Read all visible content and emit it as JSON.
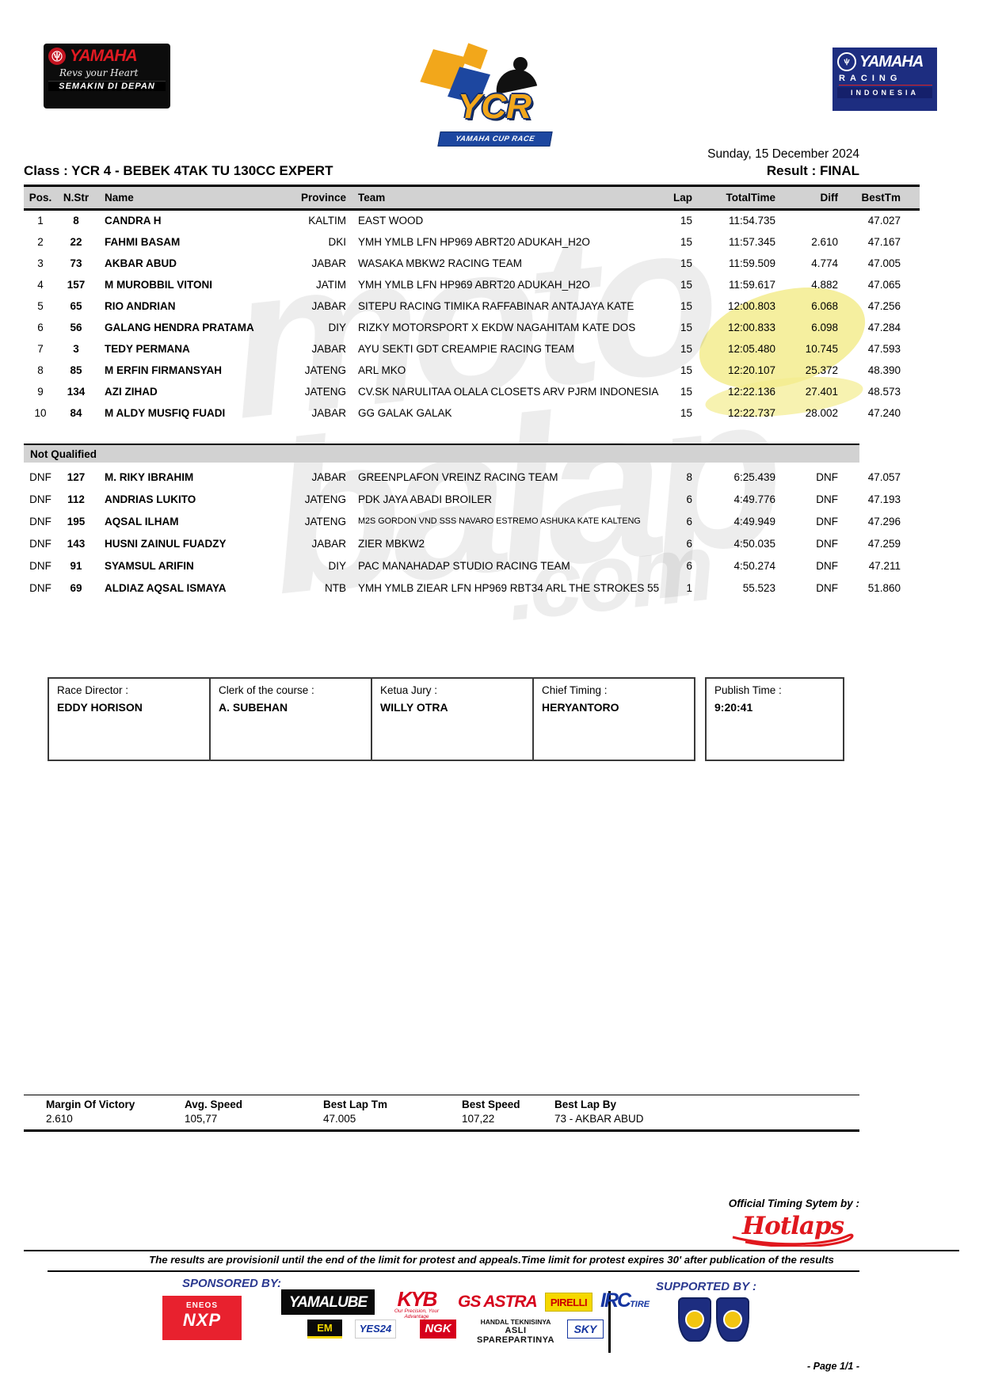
{
  "page": {
    "date": "Sunday, 15 December 2024",
    "class_label": "Class : YCR 4 - BEBEK 4TAK TU 130CC EXPERT",
    "result_label": "Result : FINAL",
    "page_label": "- Page 1/1 -"
  },
  "logos": {
    "yamaha_left": {
      "brand": "YAMAHA",
      "tagline": "Revs your Heart",
      "strip": "SEMAKIN DI DEPAN"
    },
    "ycr": {
      "title": "YCR",
      "banner": "YAMAHA CUP RACE"
    },
    "yamaha_right": {
      "brand": "YAMAHA",
      "line2": "RACING",
      "line3": "INDONESIA"
    }
  },
  "watermark": {
    "line1": "moto",
    "line2": "balap",
    "suffix": ".com"
  },
  "results": {
    "columns": [
      "Pos.",
      "N.Str",
      "Name",
      "Province",
      "Team",
      "Lap",
      "TotalTime",
      "Diff",
      "BestTm"
    ],
    "rows": [
      {
        "pos": "1",
        "nstr": "8",
        "name": "CANDRA H",
        "province": "KALTIM",
        "team": "EAST WOOD",
        "lap": "15",
        "total": "11:54.735",
        "diff": "",
        "best": "47.027"
      },
      {
        "pos": "2",
        "nstr": "22",
        "name": "FAHMI BASAM",
        "province": "DKI",
        "team": "YMH YMLB LFN HP969 ABRT20 ADUKAH_H2O",
        "lap": "15",
        "total": "11:57.345",
        "diff": "2.610",
        "best": "47.167"
      },
      {
        "pos": "3",
        "nstr": "73",
        "name": "AKBAR ABUD",
        "province": "JABAR",
        "team": "WASAKA MBKW2 RACING TEAM",
        "lap": "15",
        "total": "11:59.509",
        "diff": "4.774",
        "best": "47.005"
      },
      {
        "pos": "4",
        "nstr": "157",
        "name": "M MUROBBIL VITONI",
        "province": "JATIM",
        "team": "YMH YMLB LFN HP969 ABRT20 ADUKAH_H2O",
        "lap": "15",
        "total": "11:59.617",
        "diff": "4.882",
        "best": "47.065"
      },
      {
        "pos": "5",
        "nstr": "65",
        "name": "RIO ANDRIAN",
        "province": "JABAR",
        "team": "SITEPU RACING TIMIKA RAFFABINAR ANTAJAYA KATE",
        "lap": "15",
        "total": "12:00.803",
        "diff": "6.068",
        "best": "47.256"
      },
      {
        "pos": "6",
        "nstr": "56",
        "name": "GALANG HENDRA PRATAMA",
        "province": "DIY",
        "team": "RIZKY MOTORSPORT X EKDW NAGAHITAM KATE DOS",
        "lap": "15",
        "total": "12:00.833",
        "diff": "6.098",
        "best": "47.284"
      },
      {
        "pos": "7",
        "nstr": "3",
        "name": "TEDY PERMANA",
        "province": "JABAR",
        "team": "AYU SEKTI GDT CREAMPIE RACING TEAM",
        "lap": "15",
        "total": "12:05.480",
        "diff": "10.745",
        "best": "47.593"
      },
      {
        "pos": "8",
        "nstr": "85",
        "name": "M ERFIN FIRMANSYAH",
        "province": "JATENG",
        "team": "ARL MKO",
        "lap": "15",
        "total": "12:20.107",
        "diff": "25.372",
        "best": "48.390"
      },
      {
        "pos": "9",
        "nstr": "134",
        "name": "AZI ZIHAD",
        "province": "JATENG",
        "team": "CV.SK NARULITAA OLALA CLOSETS ARV PJRM INDONESIA",
        "lap": "15",
        "total": "12:22.136",
        "diff": "27.401",
        "best": "48.573"
      },
      {
        "pos": "10",
        "nstr": "84",
        "name": "M ALDY MUSFIQ FUADI",
        "province": "JABAR",
        "team": "GG GALAK GALAK",
        "lap": "15",
        "total": "12:22.737",
        "diff": "28.002",
        "best": "47.240"
      }
    ]
  },
  "not_qualified": {
    "label": "Not Qualified",
    "rows": [
      {
        "pos": "DNF",
        "nstr": "127",
        "name": "M. RIKY IBRAHIM",
        "province": "JABAR",
        "team": "GREENPLAFON VREINZ RACING TEAM",
        "lap": "8",
        "total": "6:25.439",
        "diff": "DNF",
        "best": "47.057"
      },
      {
        "pos": "DNF",
        "nstr": "112",
        "name": "ANDRIAS LUKITO",
        "province": "JATENG",
        "team": "PDK JAYA ABADI BROILER",
        "lap": "6",
        "total": "4:49.776",
        "diff": "DNF",
        "best": "47.193"
      },
      {
        "pos": "DNF",
        "nstr": "195",
        "name": "AQSAL ILHAM",
        "province": "JATENG",
        "team": "M2S GORDON VND SSS NAVARO ESTREMO ASHUKA KATE KALTENG",
        "lap": "6",
        "total": "4:49.949",
        "diff": "DNF",
        "best": "47.296"
      },
      {
        "pos": "DNF",
        "nstr": "143",
        "name": "HUSNI ZAINUL FUADZY",
        "province": "JABAR",
        "team": "ZIER MBKW2",
        "lap": "6",
        "total": "4:50.035",
        "diff": "DNF",
        "best": "47.259"
      },
      {
        "pos": "DNF",
        "nstr": "91",
        "name": "SYAMSUL ARIFIN",
        "province": "DIY",
        "team": "PAC MANAHADAP STUDIO RACING TEAM",
        "lap": "6",
        "total": "4:50.274",
        "diff": "DNF",
        "best": "47.211"
      },
      {
        "pos": "DNF",
        "nstr": "69",
        "name": "ALDIAZ AQSAL ISMAYA",
        "province": "NTB",
        "team": "YMH YMLB ZIEAR LFN HP969 RBT34 ARL THE STROKES 55",
        "lap": "1",
        "total": "55.523",
        "diff": "DNF",
        "best": "51.860"
      }
    ]
  },
  "officials": [
    {
      "label": "Race Director :",
      "name": "EDDY HORISON"
    },
    {
      "label": "Clerk of the course :",
      "name": "A. SUBEHAN"
    },
    {
      "label": "Ketua Jury :",
      "name": "WILLY OTRA"
    },
    {
      "label": "Chief Timing :",
      "name": "HERYANTORO"
    },
    {
      "label": "Publish Time :",
      "name": "9:20:41"
    }
  ],
  "stats": [
    {
      "label": "Margin Of Victory",
      "value": "2.610"
    },
    {
      "label": "Avg. Speed",
      "value": "105,77"
    },
    {
      "label": "Best Lap Tm",
      "value": "47.005"
    },
    {
      "label": "Best Speed",
      "value": "107,22"
    },
    {
      "label": "Best Lap By",
      "value": "73 - AKBAR ABUD"
    }
  ],
  "footer": {
    "timing_label": "Official Timing Sytem by :",
    "timing_brand": "Hotlaps",
    "note": "The results are provisionil until the end of the limit for protest and appeals.Time limit for protest expires 30' after publication of the results",
    "sponsored_by": "SPONSORED BY:",
    "supported_by": "SUPPORTED BY :",
    "sponsors": {
      "eneos_top": "ENEOS",
      "eneos": "NXP",
      "yamalube": "YAMALUBE",
      "kyb": "KYB",
      "kyb_tagline": "Our Precision, Your Advantage",
      "gsastra": "GS ASTRA",
      "pirelli": "PIRELLI",
      "irc": "IRC",
      "irc_suffix": "TIRE",
      "em": "EM",
      "yes24": "YES24",
      "ngk": "NGK",
      "handal_line1": "HANDAL TEKNISINYA",
      "handal_line2": "ASLI SPAREPARTINYA",
      "sky": "SKY"
    }
  },
  "colors": {
    "yamaha_red": "#e11a22",
    "navy": "#1d2d80",
    "band_gray": "#d2d2d2",
    "sponsor_blue": "#2b3990",
    "hotlaps_red": "#e0181e",
    "gold": "#f2a71b",
    "highlight_yellow": "#f3ec8e"
  }
}
